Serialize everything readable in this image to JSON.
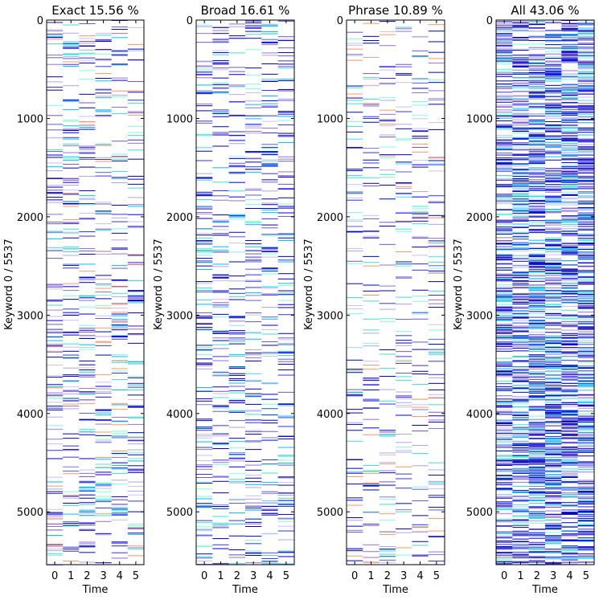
{
  "chart_data": [
    {
      "type": "heatmap",
      "title": "Exact 15.56 %",
      "xlabel": "Time",
      "ylabel": "Keyword 0 / 5537",
      "x_ticks": [
        "0",
        "1",
        "2",
        "3",
        "4",
        "5"
      ],
      "y_ticks": [
        "0",
        "1000",
        "2000",
        "3000",
        "4000",
        "5000"
      ],
      "xlim": [
        -0.5,
        5.5
      ],
      "ylim": [
        5537,
        0
      ],
      "n_keywords": 5537,
      "n_time": 6,
      "fill_fraction": 0.1556,
      "colors": [
        "#0000cc",
        "#3333ee",
        "#6a5acd",
        "#9370db",
        "#b0a4f0",
        "#c8c0f8",
        "#40e0d0",
        "#00bfff",
        "#7fffd4",
        "#ff9966"
      ]
    },
    {
      "type": "heatmap",
      "title": "Broad 16.61 %",
      "xlabel": "Time",
      "ylabel": "Keyword 0 / 5537",
      "x_ticks": [
        "0",
        "1",
        "2",
        "3",
        "4",
        "5"
      ],
      "y_ticks": [
        "0",
        "1000",
        "2000",
        "3000",
        "4000",
        "5000"
      ],
      "xlim": [
        -0.5,
        5.5
      ],
      "ylim": [
        5537,
        0
      ],
      "n_keywords": 5537,
      "n_time": 6,
      "fill_fraction": 0.1661,
      "colors": [
        "#0000cc",
        "#3333ee",
        "#6a5acd",
        "#9370db",
        "#b0a4f0",
        "#c8c0f8",
        "#40e0d0",
        "#00bfff",
        "#7fffd4"
      ]
    },
    {
      "type": "heatmap",
      "title": "Phrase 10.89 %",
      "xlabel": "Time",
      "ylabel": "Keyword 0 / 5537",
      "x_ticks": [
        "0",
        "1",
        "2",
        "3",
        "4",
        "5"
      ],
      "y_ticks": [
        "0",
        "1000",
        "2000",
        "3000",
        "4000",
        "5000"
      ],
      "xlim": [
        -0.5,
        5.5
      ],
      "ylim": [
        5537,
        0
      ],
      "n_keywords": 5537,
      "n_time": 6,
      "fill_fraction": 0.1089,
      "colors": [
        "#0000cc",
        "#3333ee",
        "#6a5acd",
        "#9370db",
        "#b0a4f0",
        "#c8c0f8",
        "#40e0d0",
        "#7fffd4",
        "#ff9966"
      ]
    },
    {
      "type": "heatmap",
      "title": "All 43.06 %",
      "xlabel": "Time",
      "ylabel": "Keyword 0 / 5537",
      "x_ticks": [
        "0",
        "1",
        "2",
        "3",
        "4",
        "5"
      ],
      "y_ticks": [
        "0",
        "1000",
        "2000",
        "3000",
        "4000",
        "5000"
      ],
      "xlim": [
        -0.5,
        5.5
      ],
      "ylim": [
        5537,
        0
      ],
      "n_keywords": 5537,
      "n_time": 6,
      "fill_fraction": 0.4306,
      "colors": [
        "#0000cc",
        "#0000aa",
        "#3333ee",
        "#6a5acd",
        "#9370db",
        "#b0a4f0",
        "#c8c0f8",
        "#40e0d0",
        "#00bfff",
        "#7fffd4"
      ]
    }
  ]
}
